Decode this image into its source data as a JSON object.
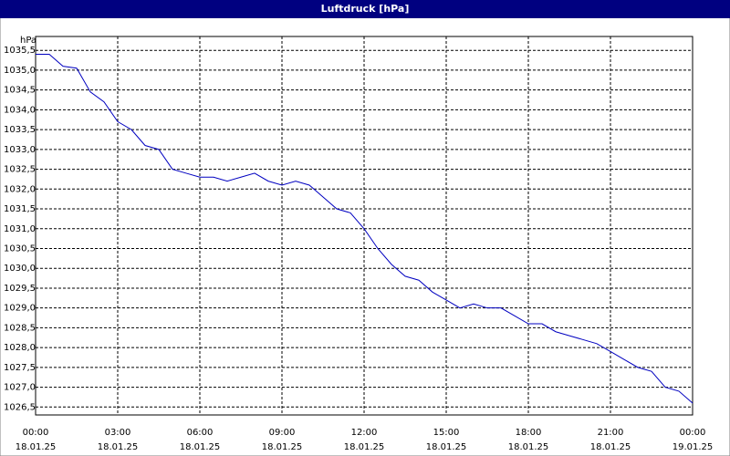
{
  "chart_data": {
    "type": "line",
    "title": "Luftdruck [hPa]",
    "y_label": "hPa",
    "x": [
      0,
      0.5,
      1,
      1.5,
      2,
      2.5,
      3,
      3.5,
      4,
      4.5,
      5,
      5.5,
      6,
      6.5,
      7,
      7.5,
      8,
      8.5,
      9,
      9.5,
      10,
      10.5,
      11,
      11.5,
      12,
      12.5,
      13,
      13.5,
      14,
      14.5,
      15,
      15.5,
      16,
      16.5,
      17,
      17.5,
      18,
      18.5,
      19,
      19.5,
      20,
      20.5,
      21,
      21.5,
      22,
      22.5,
      23,
      23.5,
      24
    ],
    "series": [
      {
        "name": "Luftdruck",
        "color": "#0000c0",
        "values": [
          1035.4,
          1035.4,
          1035.1,
          1035.05,
          1034.45,
          1034.2,
          1033.7,
          1033.5,
          1033.1,
          1033.0,
          1032.5,
          1032.4,
          1032.3,
          1032.3,
          1032.2,
          1032.3,
          1032.4,
          1032.2,
          1032.1,
          1032.2,
          1032.1,
          1031.8,
          1031.5,
          1031.4,
          1031.0,
          1030.5,
          1030.1,
          1029.8,
          1029.7,
          1029.4,
          1029.2,
          1029.0,
          1029.1,
          1029.0,
          1029.0,
          1028.8,
          1028.6,
          1028.6,
          1028.4,
          1028.3,
          1028.2,
          1028.1,
          1027.9,
          1027.7,
          1027.5,
          1027.4,
          1027.0,
          1026.9,
          1026.6
        ]
      }
    ],
    "xlim": [
      0,
      24
    ],
    "xticks": [
      {
        "value": 0,
        "label": [
          "00:00",
          "18.01.25"
        ]
      },
      {
        "value": 3,
        "label": [
          "03:00",
          "18.01.25"
        ]
      },
      {
        "value": 6,
        "label": [
          "06:00",
          "18.01.25"
        ]
      },
      {
        "value": 9,
        "label": [
          "09:00",
          "18.01.25"
        ]
      },
      {
        "value": 12,
        "label": [
          "12:00",
          "18.01.25"
        ]
      },
      {
        "value": 15,
        "label": [
          "15:00",
          "18.01.25"
        ]
      },
      {
        "value": 18,
        "label": [
          "18:00",
          "18.01.25"
        ]
      },
      {
        "value": 21,
        "label": [
          "21:00",
          "18.01.25"
        ]
      },
      {
        "value": 24,
        "label": [
          "00:00",
          "19.01.25"
        ]
      }
    ],
    "ylim": [
      1026.3,
      1035.85
    ],
    "yticks": [
      {
        "value": 1026.5,
        "label": "1026,5"
      },
      {
        "value": 1027.0,
        "label": "1027,0"
      },
      {
        "value": 1027.5,
        "label": "1027,5"
      },
      {
        "value": 1028.0,
        "label": "1028,0"
      },
      {
        "value": 1028.5,
        "label": "1028,5"
      },
      {
        "value": 1029.0,
        "label": "1029,0"
      },
      {
        "value": 1029.5,
        "label": "1029,5"
      },
      {
        "value": 1030.0,
        "label": "1030,0"
      },
      {
        "value": 1030.5,
        "label": "1030,5"
      },
      {
        "value": 1031.0,
        "label": "1031,0"
      },
      {
        "value": 1031.5,
        "label": "1031,5"
      },
      {
        "value": 1032.0,
        "label": "1032,0"
      },
      {
        "value": 1032.5,
        "label": "1032,5"
      },
      {
        "value": 1033.0,
        "label": "1033,0"
      },
      {
        "value": 1033.5,
        "label": "1033,5"
      },
      {
        "value": 1034.0,
        "label": "1034,0"
      },
      {
        "value": 1034.5,
        "label": "1034,5"
      },
      {
        "value": 1035.0,
        "label": "1035,0"
      },
      {
        "value": 1035.5,
        "label": "1035,5"
      }
    ],
    "grid": true
  }
}
